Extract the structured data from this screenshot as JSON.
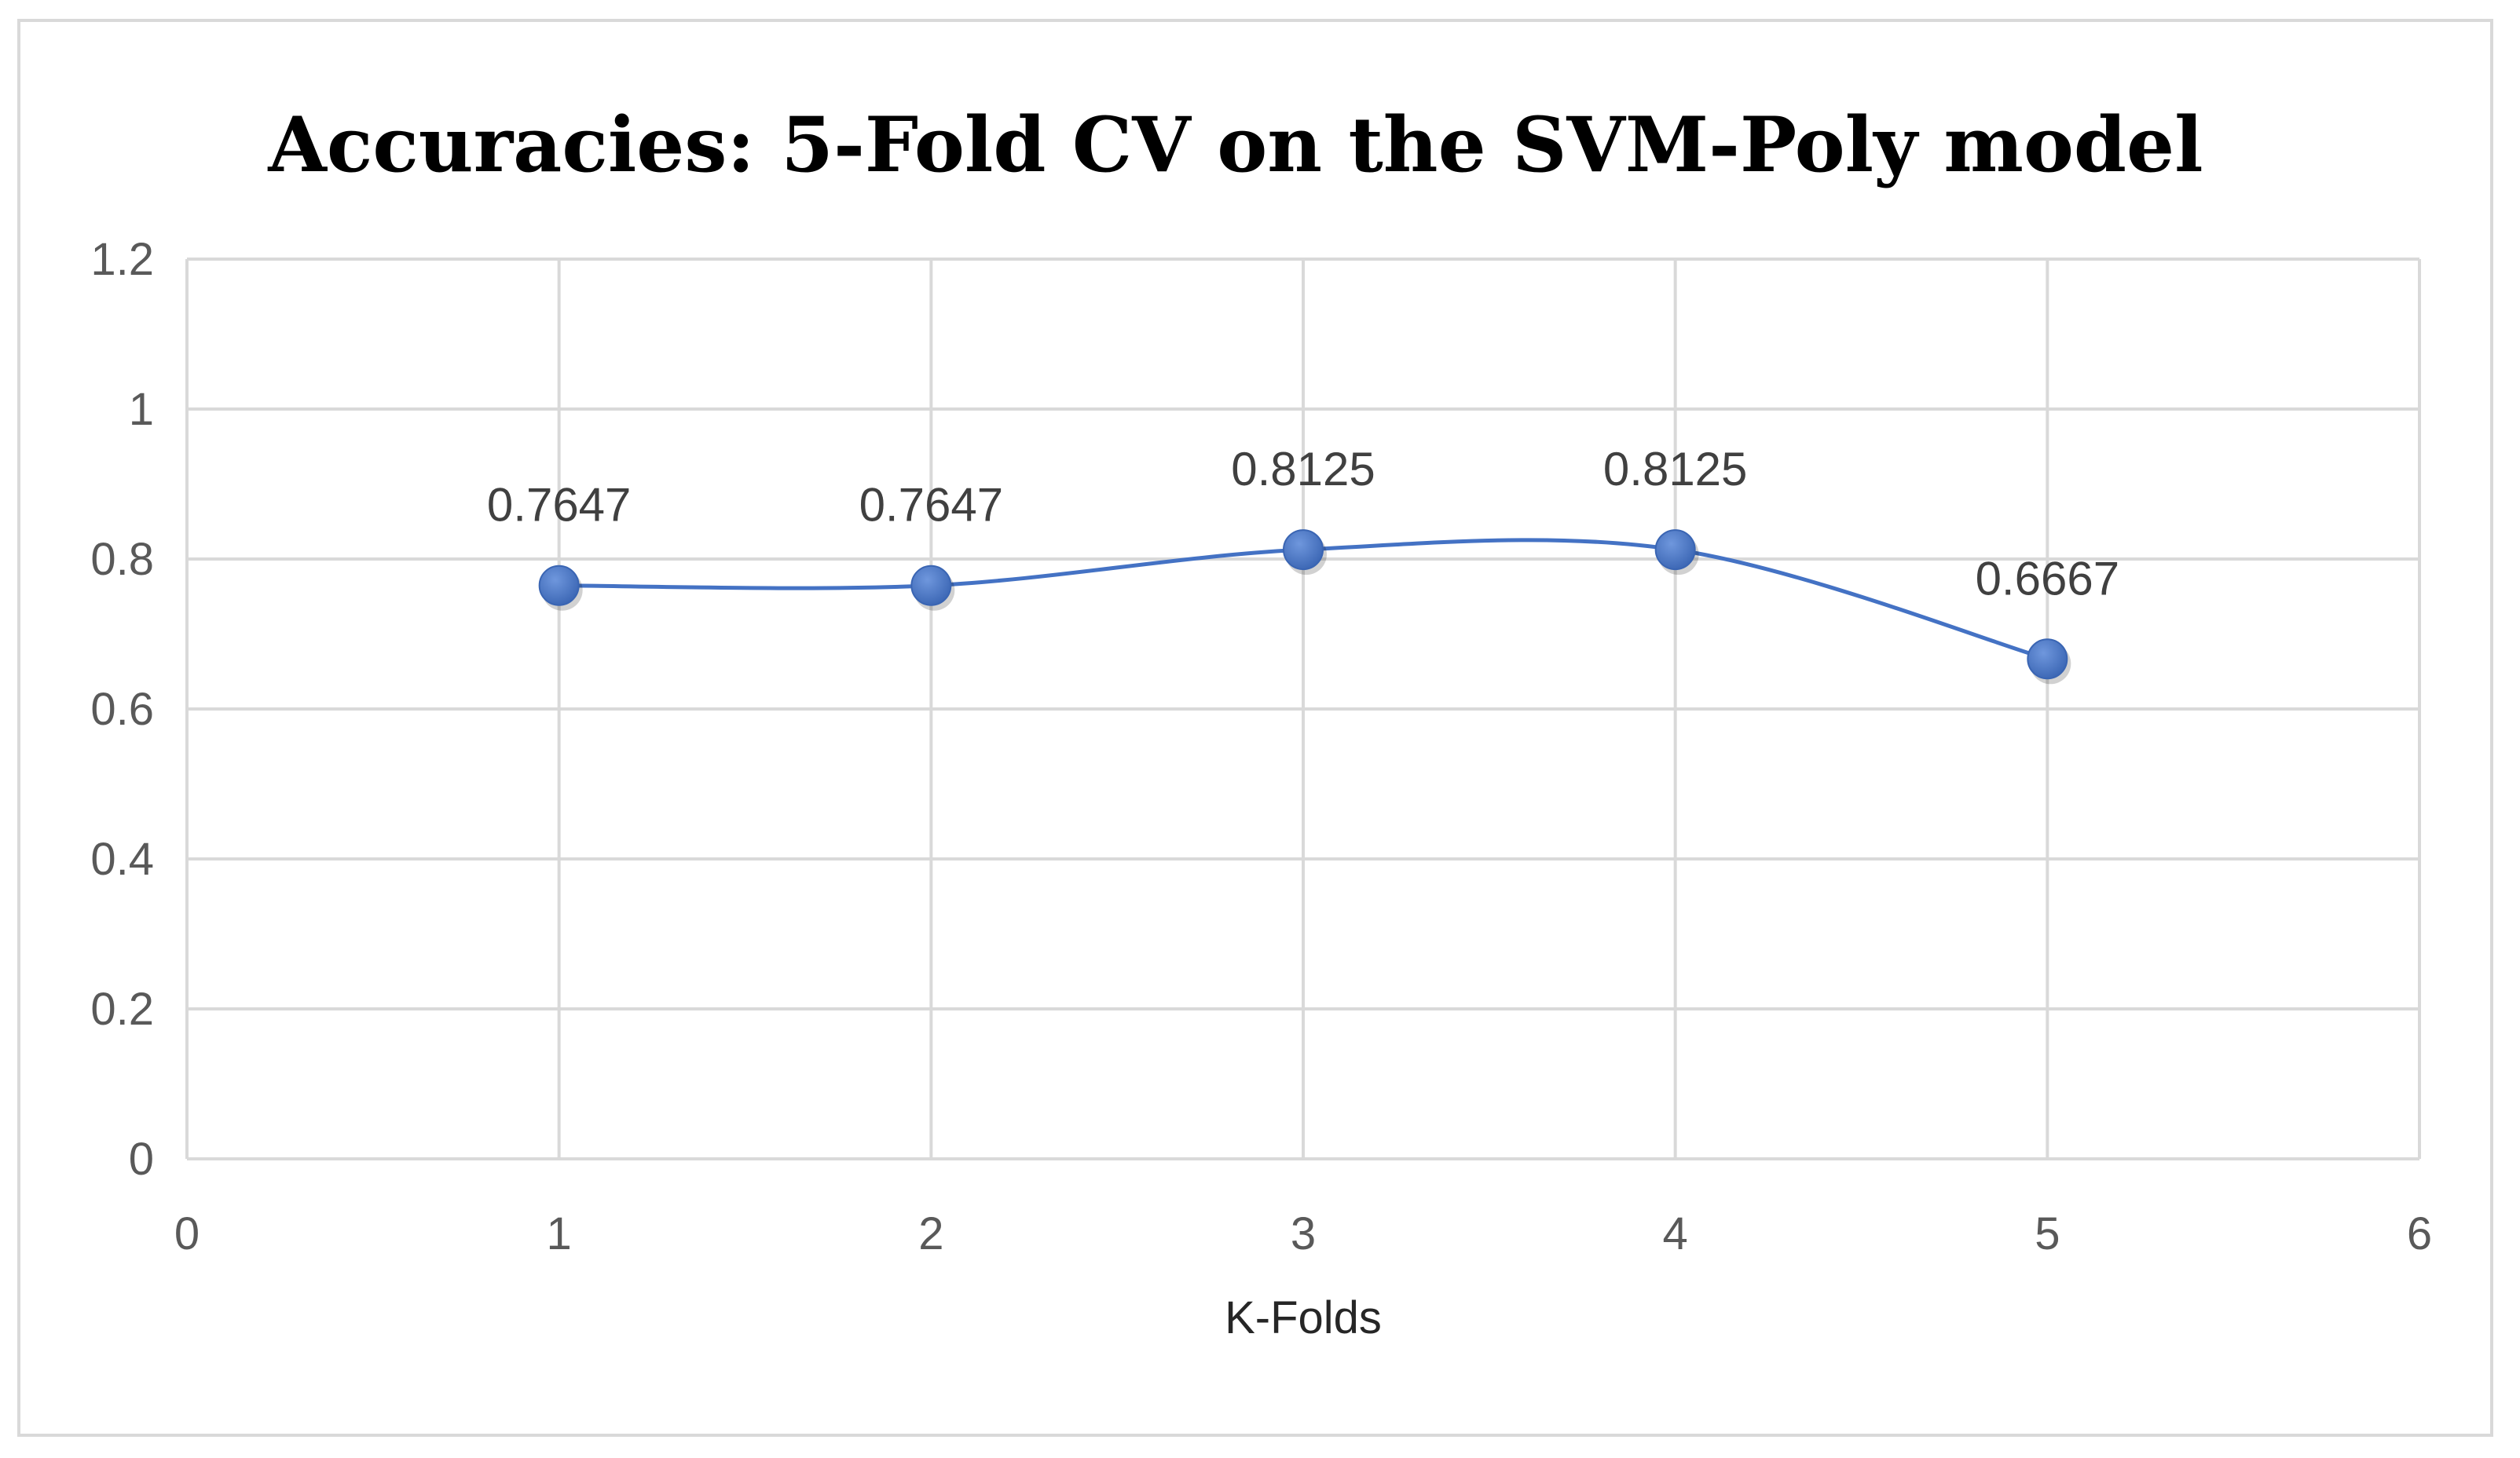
{
  "chart_data": {
    "type": "line",
    "title": "Accuracies: 5-Fold CV on the SVM-Poly model",
    "xlabel": "K-Folds",
    "ylabel": "",
    "xlim": [
      0,
      6
    ],
    "ylim": [
      0,
      1.2
    ],
    "xticks": [
      0,
      1,
      2,
      3,
      4,
      5,
      6
    ],
    "yticks": [
      0,
      0.2,
      0.4,
      0.6,
      0.8,
      1,
      1.2
    ],
    "xtick_labels": [
      "0",
      "1",
      "2",
      "3",
      "4",
      "5",
      "6"
    ],
    "ytick_labels": [
      "0",
      "0.2",
      "0.4",
      "0.6",
      "0.8",
      "1",
      "1.2"
    ],
    "grid": true,
    "smooth": true,
    "legend": "none",
    "series": [
      {
        "color": "#4472C4",
        "points": [
          {
            "x": 1,
            "y": 0.7647,
            "label": "0.7647"
          },
          {
            "x": 2,
            "y": 0.7647,
            "label": "0.7647"
          },
          {
            "x": 3,
            "y": 0.8125,
            "label": "0.8125"
          },
          {
            "x": 4,
            "y": 0.8125,
            "label": "0.8125"
          },
          {
            "x": 5,
            "y": 0.6667,
            "label": "0.6667"
          }
        ]
      }
    ]
  }
}
